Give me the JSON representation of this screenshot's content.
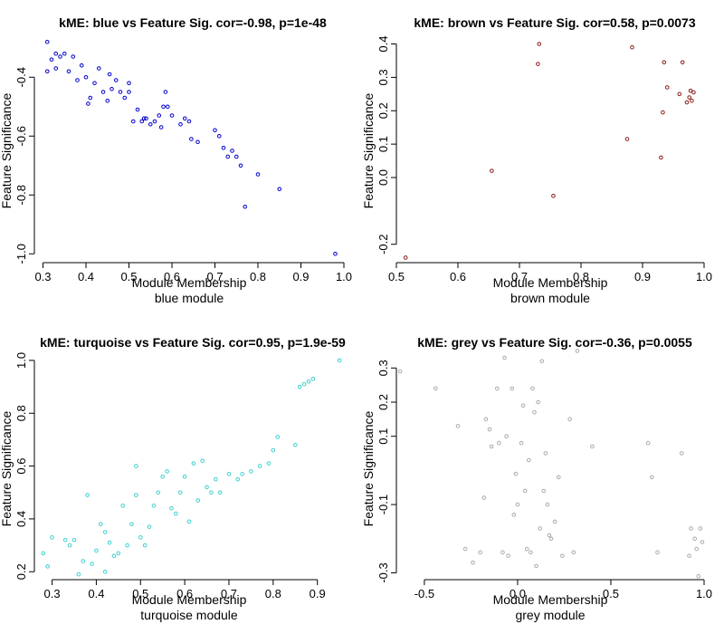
{
  "chart_data": [
    {
      "type": "scatter",
      "title": "kME: blue vs Feature Sig. cor=-0.98, p=1e-48",
      "xlabel": "Module Membership",
      "xlabel2": "blue module",
      "ylabel": "Feature Significance",
      "color": "#0000cc",
      "xlim": [
        0.28,
        1.0
      ],
      "ylim": [
        -1.03,
        -0.27
      ],
      "xticks": [
        0.3,
        0.4,
        0.5,
        0.6,
        0.7,
        0.8,
        0.9,
        1.0
      ],
      "xtick_labels": [
        "0.3",
        "0.4",
        "0.5",
        "0.6",
        "0.7",
        "0.8",
        "0.9",
        "1.0"
      ],
      "yticks": [
        -0.4,
        -0.6,
        -0.8,
        -1.0
      ],
      "ytick_labels": [
        "-0.4",
        "-0.6",
        "-0.8",
        "-1.0"
      ],
      "points": [
        [
          0.31,
          -0.28
        ],
        [
          0.31,
          -0.38
        ],
        [
          0.32,
          -0.34
        ],
        [
          0.33,
          -0.32
        ],
        [
          0.33,
          -0.37
        ],
        [
          0.34,
          -0.33
        ],
        [
          0.35,
          -0.32
        ],
        [
          0.36,
          -0.38
        ],
        [
          0.37,
          -0.33
        ],
        [
          0.38,
          -0.41
        ],
        [
          0.39,
          -0.36
        ],
        [
          0.4,
          -0.4
        ],
        [
          0.405,
          -0.49
        ],
        [
          0.41,
          -0.47
        ],
        [
          0.42,
          -0.42
        ],
        [
          0.43,
          -0.37
        ],
        [
          0.44,
          -0.45
        ],
        [
          0.45,
          -0.48
        ],
        [
          0.455,
          -0.39
        ],
        [
          0.46,
          -0.44
        ],
        [
          0.47,
          -0.41
        ],
        [
          0.48,
          -0.45
        ],
        [
          0.49,
          -0.47
        ],
        [
          0.5,
          -0.42
        ],
        [
          0.5,
          -0.45
        ],
        [
          0.51,
          -0.55
        ],
        [
          0.52,
          -0.51
        ],
        [
          0.53,
          -0.55
        ],
        [
          0.535,
          -0.54
        ],
        [
          0.54,
          -0.54
        ],
        [
          0.55,
          -0.56
        ],
        [
          0.56,
          -0.55
        ],
        [
          0.57,
          -0.53
        ],
        [
          0.575,
          -0.57
        ],
        [
          0.58,
          -0.5
        ],
        [
          0.585,
          -0.45
        ],
        [
          0.59,
          -0.5
        ],
        [
          0.6,
          -0.53
        ],
        [
          0.62,
          -0.56
        ],
        [
          0.63,
          -0.54
        ],
        [
          0.64,
          -0.55
        ],
        [
          0.645,
          -0.61
        ],
        [
          0.66,
          -0.62
        ],
        [
          0.7,
          -0.58
        ],
        [
          0.71,
          -0.6
        ],
        [
          0.72,
          -0.64
        ],
        [
          0.73,
          -0.67
        ],
        [
          0.74,
          -0.65
        ],
        [
          0.75,
          -0.67
        ],
        [
          0.76,
          -0.7
        ],
        [
          0.77,
          -0.84
        ],
        [
          0.8,
          -0.73
        ],
        [
          0.85,
          -0.78
        ],
        [
          0.98,
          -1.0
        ]
      ]
    },
    {
      "type": "scatter",
      "title": "kME: brown vs Feature Sig. cor=0.58, p=0.0073",
      "xlabel": "Module Membership",
      "xlabel2": "brown module",
      "ylabel": "Feature Significance",
      "color": "#8b1a1a",
      "xlim": [
        0.5,
        1.0
      ],
      "ylim": [
        -0.255,
        0.415
      ],
      "xticks": [
        0.5,
        0.6,
        0.7,
        0.8,
        0.9,
        1.0
      ],
      "xtick_labels": [
        "0.5",
        "0.6",
        "0.7",
        "0.8",
        "0.9",
        "1.0"
      ],
      "yticks": [
        0.4,
        0.3,
        0.2,
        0.1,
        0.0,
        -0.2
      ],
      "ytick_labels": [
        "0.4",
        "0.3",
        "0.2",
        "0.1",
        "0.0",
        "-0.2"
      ],
      "points": [
        [
          0.515,
          -0.24
        ],
        [
          0.655,
          0.02
        ],
        [
          0.73,
          0.34
        ],
        [
          0.732,
          0.4
        ],
        [
          0.755,
          -0.055
        ],
        [
          0.875,
          0.115
        ],
        [
          0.883,
          0.39
        ],
        [
          0.93,
          0.06
        ],
        [
          0.933,
          0.195
        ],
        [
          0.935,
          0.345
        ],
        [
          0.94,
          0.27
        ],
        [
          0.96,
          0.25
        ],
        [
          0.965,
          0.345
        ],
        [
          0.972,
          0.225
        ],
        [
          0.976,
          0.24
        ],
        [
          0.978,
          0.26
        ],
        [
          0.98,
          0.23
        ],
        [
          0.983,
          0.255
        ]
      ]
    },
    {
      "type": "scatter",
      "title": "kME: turquoise vs Feature Sig. cor=0.95, p=1.9e-59",
      "xlabel": "Module Membership",
      "xlabel2": "turquoise module",
      "ylabel": "Feature Significance",
      "color": "#3fcfcf",
      "xlim": [
        0.26,
        0.96
      ],
      "ylim": [
        0.17,
        1.01
      ],
      "xticks": [
        0.3,
        0.4,
        0.5,
        0.6,
        0.7,
        0.8,
        0.9
      ],
      "xtick_labels": [
        "0.3",
        "0.4",
        "0.5",
        "0.6",
        "0.7",
        "0.8",
        "0.9"
      ],
      "yticks": [
        0.2,
        0.4,
        0.6,
        0.8,
        1.0
      ],
      "ytick_labels": [
        "0.2",
        "0.4",
        "0.6",
        "0.8",
        "1.0"
      ],
      "points": [
        [
          0.28,
          0.27
        ],
        [
          0.29,
          0.22
        ],
        [
          0.3,
          0.33
        ],
        [
          0.33,
          0.32
        ],
        [
          0.34,
          0.3
        ],
        [
          0.35,
          0.32
        ],
        [
          0.36,
          0.19
        ],
        [
          0.37,
          0.24
        ],
        [
          0.38,
          0.49
        ],
        [
          0.39,
          0.23
        ],
        [
          0.4,
          0.28
        ],
        [
          0.41,
          0.38
        ],
        [
          0.42,
          0.35
        ],
        [
          0.42,
          0.2
        ],
        [
          0.43,
          0.31
        ],
        [
          0.44,
          0.26
        ],
        [
          0.45,
          0.27
        ],
        [
          0.46,
          0.45
        ],
        [
          0.47,
          0.3
        ],
        [
          0.48,
          0.38
        ],
        [
          0.49,
          0.49
        ],
        [
          0.49,
          0.6
        ],
        [
          0.5,
          0.33
        ],
        [
          0.51,
          0.3
        ],
        [
          0.52,
          0.37
        ],
        [
          0.53,
          0.45
        ],
        [
          0.54,
          0.5
        ],
        [
          0.55,
          0.56
        ],
        [
          0.56,
          0.58
        ],
        [
          0.57,
          0.44
        ],
        [
          0.58,
          0.42
        ],
        [
          0.59,
          0.5
        ],
        [
          0.6,
          0.56
        ],
        [
          0.61,
          0.39
        ],
        [
          0.62,
          0.61
        ],
        [
          0.63,
          0.47
        ],
        [
          0.64,
          0.62
        ],
        [
          0.65,
          0.52
        ],
        [
          0.66,
          0.5
        ],
        [
          0.67,
          0.55
        ],
        [
          0.68,
          0.5
        ],
        [
          0.7,
          0.57
        ],
        [
          0.72,
          0.55
        ],
        [
          0.73,
          0.57
        ],
        [
          0.75,
          0.58
        ],
        [
          0.77,
          0.6
        ],
        [
          0.79,
          0.61
        ],
        [
          0.8,
          0.66
        ],
        [
          0.81,
          0.71
        ],
        [
          0.85,
          0.68
        ],
        [
          0.86,
          0.9
        ],
        [
          0.87,
          0.91
        ],
        [
          0.88,
          0.92
        ],
        [
          0.89,
          0.93
        ],
        [
          0.95,
          1.0
        ]
      ]
    },
    {
      "type": "scatter",
      "title": "kME: grey vs Feature Sig. cor=-0.36, p=0.0055",
      "xlabel": "Module Membership",
      "xlabel2": "grey module",
      "ylabel": "Feature Significance",
      "color": "#aaaaaa",
      "xlim": [
        -0.65,
        1.0
      ],
      "ylim": [
        -0.32,
        0.33
      ],
      "xticks": [
        -0.5,
        0.0,
        0.5,
        1.0
      ],
      "xtick_labels": [
        "-0.5",
        "0.0",
        "0.5",
        "1.0"
      ],
      "yticks": [
        0.3,
        0.2,
        0.1,
        -0.1,
        -0.3
      ],
      "ytick_labels": [
        "0.3",
        "0.2",
        "0.1",
        "-0.1",
        "-0.3"
      ],
      "points": [
        [
          -0.63,
          0.29
        ],
        [
          -0.44,
          0.24
        ],
        [
          -0.32,
          0.13
        ],
        [
          -0.28,
          -0.23
        ],
        [
          -0.24,
          -0.27
        ],
        [
          -0.2,
          -0.24
        ],
        [
          -0.18,
          -0.08
        ],
        [
          -0.17,
          0.15
        ],
        [
          -0.15,
          0.12
        ],
        [
          -0.14,
          0.07
        ],
        [
          -0.11,
          0.24
        ],
        [
          -0.1,
          0.08
        ],
        [
          -0.08,
          -0.24
        ],
        [
          -0.07,
          0.33
        ],
        [
          -0.06,
          0.1
        ],
        [
          -0.05,
          -0.25
        ],
        [
          -0.03,
          0.24
        ],
        [
          -0.02,
          -0.13
        ],
        [
          -0.01,
          -0.01
        ],
        [
          0.0,
          -0.1
        ],
        [
          0.02,
          0.08
        ],
        [
          0.03,
          0.19
        ],
        [
          0.04,
          -0.06
        ],
        [
          0.05,
          -0.23
        ],
        [
          0.06,
          0.03
        ],
        [
          0.07,
          -0.24
        ],
        [
          0.08,
          0.24
        ],
        [
          0.09,
          0.17
        ],
        [
          0.1,
          -0.28
        ],
        [
          0.11,
          0.2
        ],
        [
          0.12,
          -0.17
        ],
        [
          0.13,
          0.32
        ],
        [
          0.14,
          -0.06
        ],
        [
          0.15,
          0.05
        ],
        [
          0.16,
          -0.1
        ],
        [
          0.17,
          -0.19
        ],
        [
          0.18,
          -0.2
        ],
        [
          0.2,
          -0.15
        ],
        [
          0.22,
          -0.02
        ],
        [
          0.24,
          -0.25
        ],
        [
          0.28,
          0.15
        ],
        [
          0.3,
          -0.24
        ],
        [
          0.32,
          0.35
        ],
        [
          0.4,
          0.07
        ],
        [
          0.7,
          0.08
        ],
        [
          0.72,
          -0.02
        ],
        [
          0.75,
          -0.24
        ],
        [
          0.88,
          0.05
        ],
        [
          0.92,
          -0.25
        ],
        [
          0.93,
          -0.17
        ],
        [
          0.95,
          -0.2
        ],
        [
          0.96,
          -0.23
        ],
        [
          0.97,
          -0.31
        ],
        [
          0.98,
          -0.17
        ],
        [
          0.99,
          -0.21
        ]
      ]
    }
  ]
}
